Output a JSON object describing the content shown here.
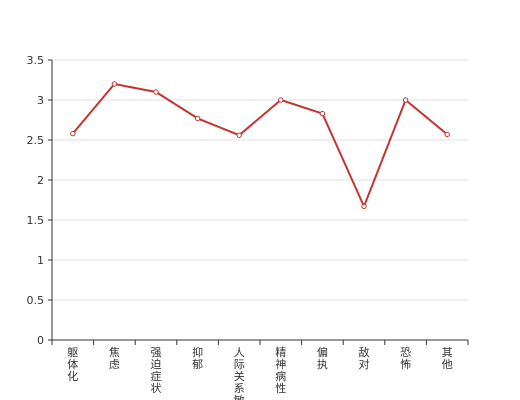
{
  "chart_data": {
    "type": "line",
    "title": "",
    "xlabel": "",
    "ylabel": "",
    "ylim": [
      0,
      3.5
    ],
    "yticks": [
      "0",
      "0.5",
      "1",
      "1.5",
      "2",
      "2.5",
      "3",
      "3.5"
    ],
    "grid": true,
    "categories": [
      "躯体化",
      "焦虑",
      "强迫症状",
      "抑郁",
      "人际关系敏感",
      "精神病性",
      "偏执",
      "敌对",
      "恐怖",
      "其他"
    ],
    "series": [
      {
        "values": [
          2.58,
          3.2,
          3.1,
          2.77,
          2.56,
          3.0,
          2.83,
          1.67,
          3.0,
          2.57
        ],
        "color": "#c23531"
      }
    ]
  }
}
